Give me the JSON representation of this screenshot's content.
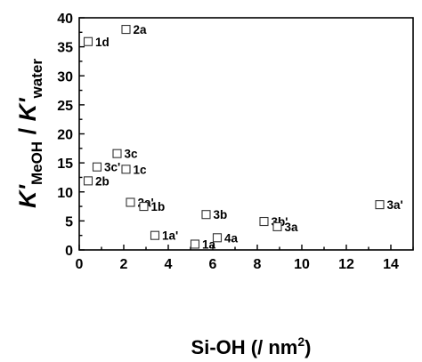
{
  "chart_data": {
    "type": "scatter",
    "xlabel": "Si-OH (/ nm²)",
    "ylabel": "K'MeOH / K'water",
    "ylabel_parts": {
      "k1": "K'",
      "sub1": "MeOH",
      "slash": " / ",
      "k2": "K'",
      "sub2": "water"
    },
    "xlabel_parts": {
      "pre": "Si-OH (/ nm",
      "sup": "2",
      "post": ")"
    },
    "xlim": [
      0,
      15
    ],
    "ylim": [
      0,
      40
    ],
    "xticks": [
      0,
      2,
      4,
      6,
      8,
      10,
      12,
      14
    ],
    "yticks": [
      0,
      5,
      10,
      15,
      20,
      25,
      30,
      35,
      40
    ],
    "marker": "open-square",
    "points": [
      {
        "label": "2a",
        "x": 2.1,
        "y": 38.0
      },
      {
        "label": "1d",
        "x": 0.4,
        "y": 35.9
      },
      {
        "label": "3c",
        "x": 1.7,
        "y": 16.6
      },
      {
        "label": "3c'",
        "x": 0.8,
        "y": 14.3
      },
      {
        "label": "1c",
        "x": 2.1,
        "y": 13.9
      },
      {
        "label": "2b",
        "x": 0.4,
        "y": 11.9
      },
      {
        "label": "2a'",
        "x": 2.3,
        "y": 8.2
      },
      {
        "label": "1b",
        "x": 2.9,
        "y": 7.5
      },
      {
        "label": "3b",
        "x": 5.7,
        "y": 6.1
      },
      {
        "label": "3b'",
        "x": 8.3,
        "y": 4.9
      },
      {
        "label": "3a",
        "x": 8.9,
        "y": 4.0
      },
      {
        "label": "3a'",
        "x": 13.5,
        "y": 7.8
      },
      {
        "label": "1a'",
        "x": 3.4,
        "y": 2.5
      },
      {
        "label": "4a",
        "x": 6.2,
        "y": 2.1
      },
      {
        "label": "1a",
        "x": 5.2,
        "y": 1.0
      }
    ]
  }
}
